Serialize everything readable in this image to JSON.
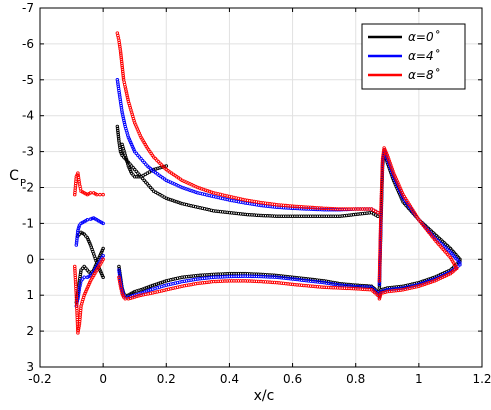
{
  "chart_data": {
    "type": "scatter",
    "title": "",
    "xlabel": "x/c",
    "ylabel": "C",
    "ylabel_sub": "P",
    "xlim": [
      -0.2,
      1.2
    ],
    "ylim": [
      3,
      -7
    ],
    "y_inverted": true,
    "grid": true,
    "legend_position": "top-right",
    "x_ticks": [
      "-0.2",
      "0",
      "0.2",
      "0.4",
      "0.6",
      "0.8",
      "1",
      "1.2"
    ],
    "y_ticks": [
      "-7",
      "-6",
      "-5",
      "-4",
      "-3",
      "-2",
      "-1",
      "0",
      "1",
      "2",
      "3"
    ],
    "legend": [
      {
        "label": "α=0˚",
        "color": "#000000"
      },
      {
        "label": "α=4˚",
        "color": "#0000ff"
      },
      {
        "label": "α=8˚",
        "color": "#ff0000"
      }
    ],
    "series": [
      {
        "name": "α=0˚",
        "color": "#000000",
        "segments": [
          {
            "x": [
              -0.08,
              -0.07,
              -0.06,
              -0.05,
              -0.04,
              -0.03,
              -0.02,
              -0.01,
              0.0
            ],
            "y": [
              -0.65,
              -0.75,
              -0.7,
              -0.6,
              -0.4,
              -0.15,
              0.1,
              0.3,
              0.5
            ]
          },
          {
            "x": [
              -0.085,
              -0.08,
              -0.075,
              -0.07,
              -0.06,
              -0.05,
              -0.04,
              -0.03,
              -0.02,
              -0.01,
              0.0
            ],
            "y": [
              1.2,
              0.9,
              0.6,
              0.3,
              0.2,
              0.3,
              0.4,
              0.3,
              0.1,
              -0.1,
              -0.3
            ]
          },
          {
            "x": [
              0.045,
              0.05,
              0.055,
              0.06,
              0.07,
              0.08,
              0.09,
              0.1,
              0.12,
              0.14,
              0.16,
              0.18,
              0.2,
              0.25,
              0.3,
              0.35,
              0.4,
              0.45,
              0.5,
              0.55,
              0.6,
              0.65,
              0.7,
              0.75,
              0.8,
              0.85,
              0.87
            ],
            "y": [
              -3.7,
              -3.3,
              -3.0,
              -2.9,
              -2.8,
              -2.7,
              -2.6,
              -2.5,
              -2.3,
              -2.1,
              -1.9,
              -1.8,
              -1.7,
              -1.55,
              -1.45,
              -1.35,
              -1.3,
              -1.25,
              -1.22,
              -1.2,
              -1.2,
              -1.2,
              -1.2,
              -1.2,
              -1.25,
              -1.3,
              -1.2
            ]
          },
          {
            "x": [
              0.06,
              0.07,
              0.08,
              0.09,
              0.1,
              0.12,
              0.14,
              0.16,
              0.18,
              0.2
            ],
            "y": [
              -3.2,
              -2.9,
              -2.6,
              -2.4,
              -2.3,
              -2.3,
              -2.4,
              -2.5,
              -2.55,
              -2.6
            ]
          },
          {
            "x": [
              0.05,
              0.055,
              0.06,
              0.065,
              0.07,
              0.08,
              0.09,
              0.1,
              0.12,
              0.15,
              0.2,
              0.25,
              0.3,
              0.35,
              0.4,
              0.45,
              0.5,
              0.55,
              0.6,
              0.65,
              0.7,
              0.75,
              0.8,
              0.85,
              0.87
            ],
            "y": [
              0.2,
              0.5,
              0.8,
              0.95,
              1.0,
              1.0,
              0.95,
              0.9,
              0.85,
              0.75,
              0.6,
              0.5,
              0.45,
              0.42,
              0.4,
              0.4,
              0.42,
              0.45,
              0.5,
              0.55,
              0.6,
              0.68,
              0.72,
              0.75,
              0.9
            ]
          },
          {
            "x": [
              0.875,
              0.88,
              0.885,
              0.89,
              0.9,
              0.92,
              0.95,
              1.0,
              1.05,
              1.1,
              1.13
            ],
            "y": [
              0.8,
              -1.0,
              -2.6,
              -3.0,
              -2.7,
              -2.2,
              -1.6,
              -1.1,
              -0.7,
              -0.3,
              0.0
            ]
          },
          {
            "x": [
              0.875,
              0.88,
              0.9,
              0.95,
              1.0,
              1.05,
              1.1,
              1.13
            ],
            "y": [
              1.0,
              0.85,
              0.8,
              0.75,
              0.65,
              0.5,
              0.3,
              0.05
            ]
          }
        ]
      },
      {
        "name": "α=4˚",
        "color": "#0000ff",
        "segments": [
          {
            "x": [
              -0.085,
              -0.08,
              -0.075,
              -0.07,
              -0.06,
              -0.05,
              -0.04,
              -0.03,
              -0.02,
              -0.01,
              0.0
            ],
            "y": [
              -0.4,
              -0.8,
              -0.95,
              -1.0,
              -1.05,
              -1.1,
              -1.12,
              -1.15,
              -1.1,
              -1.05,
              -1.0
            ]
          },
          {
            "x": [
              -0.085,
              -0.08,
              -0.075,
              -0.07,
              -0.06,
              -0.05,
              -0.04,
              -0.03,
              -0.02,
              -0.01,
              0.0
            ],
            "y": [
              1.3,
              1.1,
              0.8,
              0.6,
              0.5,
              0.5,
              0.45,
              0.35,
              0.2,
              0.05,
              -0.1
            ]
          },
          {
            "x": [
              0.045,
              0.05,
              0.055,
              0.06,
              0.07,
              0.08,
              0.09,
              0.1,
              0.12,
              0.14,
              0.16,
              0.2,
              0.25,
              0.3,
              0.35,
              0.4,
              0.45,
              0.5,
              0.55,
              0.6,
              0.65,
              0.7,
              0.75,
              0.8,
              0.85,
              0.87
            ],
            "y": [
              -5.0,
              -4.7,
              -4.4,
              -4.1,
              -3.7,
              -3.4,
              -3.2,
              -3.0,
              -2.8,
              -2.6,
              -2.45,
              -2.2,
              -2.0,
              -1.85,
              -1.75,
              -1.65,
              -1.57,
              -1.5,
              -1.45,
              -1.42,
              -1.4,
              -1.38,
              -1.38,
              -1.4,
              -1.4,
              -1.3
            ]
          },
          {
            "x": [
              0.05,
              0.055,
              0.06,
              0.065,
              0.07,
              0.08,
              0.1,
              0.12,
              0.15,
              0.2,
              0.25,
              0.3,
              0.35,
              0.4,
              0.45,
              0.5,
              0.55,
              0.6,
              0.65,
              0.7,
              0.75,
              0.8,
              0.85,
              0.87
            ],
            "y": [
              0.3,
              0.6,
              0.85,
              1.0,
              1.05,
              1.05,
              1.0,
              0.95,
              0.85,
              0.72,
              0.62,
              0.55,
              0.5,
              0.48,
              0.47,
              0.48,
              0.5,
              0.55,
              0.6,
              0.65,
              0.72,
              0.76,
              0.78,
              0.95
            ]
          },
          {
            "x": [
              0.875,
              0.88,
              0.885,
              0.89,
              0.9,
              0.92,
              0.95,
              1.0,
              1.05,
              1.1,
              1.13
            ],
            "y": [
              0.7,
              -1.2,
              -2.7,
              -3.05,
              -2.8,
              -2.3,
              -1.7,
              -1.1,
              -0.6,
              -0.2,
              0.1
            ]
          },
          {
            "x": [
              0.875,
              0.88,
              0.9,
              0.95,
              1.0,
              1.05,
              1.1,
              1.13
            ],
            "y": [
              1.05,
              0.9,
              0.85,
              0.8,
              0.7,
              0.55,
              0.35,
              0.15
            ]
          }
        ]
      },
      {
        "name": "α=8˚",
        "color": "#ff0000",
        "segments": [
          {
            "x": [
              -0.09,
              -0.085,
              -0.08,
              -0.075,
              -0.07,
              -0.06,
              -0.05,
              -0.04,
              -0.03,
              -0.02,
              -0.01,
              0.0
            ],
            "y": [
              -1.8,
              -2.3,
              -2.4,
              -2.1,
              -1.9,
              -1.85,
              -1.8,
              -1.85,
              -1.85,
              -1.8,
              -1.8,
              -1.8
            ]
          },
          {
            "x": [
              -0.09,
              -0.085,
              -0.08,
              -0.075,
              -0.07,
              -0.06,
              -0.05,
              -0.04,
              -0.03,
              -0.02,
              -0.01,
              0.0
            ],
            "y": [
              0.2,
              1.0,
              2.05,
              1.8,
              1.3,
              1.0,
              0.8,
              0.6,
              0.45,
              0.3,
              0.15,
              0.0
            ]
          },
          {
            "x": [
              0.045,
              0.05,
              0.055,
              0.06,
              0.065,
              0.07,
              0.08,
              0.09,
              0.1,
              0.12,
              0.14,
              0.16,
              0.2,
              0.25,
              0.3,
              0.35,
              0.4,
              0.45,
              0.5,
              0.55,
              0.6,
              0.65,
              0.7,
              0.75,
              0.8,
              0.85,
              0.87
            ],
            "y": [
              -6.3,
              -6.1,
              -5.8,
              -5.4,
              -5.0,
              -4.8,
              -4.4,
              -4.1,
              -3.8,
              -3.4,
              -3.1,
              -2.85,
              -2.5,
              -2.2,
              -2.0,
              -1.85,
              -1.75,
              -1.65,
              -1.58,
              -1.52,
              -1.48,
              -1.45,
              -1.42,
              -1.4,
              -1.4,
              -1.4,
              -1.3
            ]
          },
          {
            "x": [
              0.05,
              0.055,
              0.06,
              0.065,
              0.07,
              0.08,
              0.1,
              0.12,
              0.15,
              0.2,
              0.25,
              0.3,
              0.35,
              0.4,
              0.45,
              0.5,
              0.55,
              0.6,
              0.65,
              0.7,
              0.75,
              0.8,
              0.85,
              0.87
            ],
            "y": [
              0.5,
              0.75,
              0.95,
              1.05,
              1.1,
              1.1,
              1.05,
              1.0,
              0.95,
              0.85,
              0.75,
              0.67,
              0.62,
              0.6,
              0.6,
              0.62,
              0.65,
              0.7,
              0.74,
              0.78,
              0.8,
              0.82,
              0.85,
              1.0
            ]
          },
          {
            "x": [
              0.875,
              0.88,
              0.885,
              0.89,
              0.9,
              0.92,
              0.95,
              1.0,
              1.05,
              1.1,
              1.12
            ],
            "y": [
              0.6,
              -1.4,
              -2.8,
              -3.1,
              -2.9,
              -2.4,
              -1.8,
              -1.1,
              -0.55,
              -0.05,
              0.25
            ]
          },
          {
            "x": [
              0.875,
              0.88,
              0.9,
              0.95,
              1.0,
              1.05,
              1.1,
              1.12
            ],
            "y": [
              1.1,
              0.95,
              0.9,
              0.85,
              0.75,
              0.6,
              0.4,
              0.25
            ]
          }
        ]
      }
    ]
  }
}
